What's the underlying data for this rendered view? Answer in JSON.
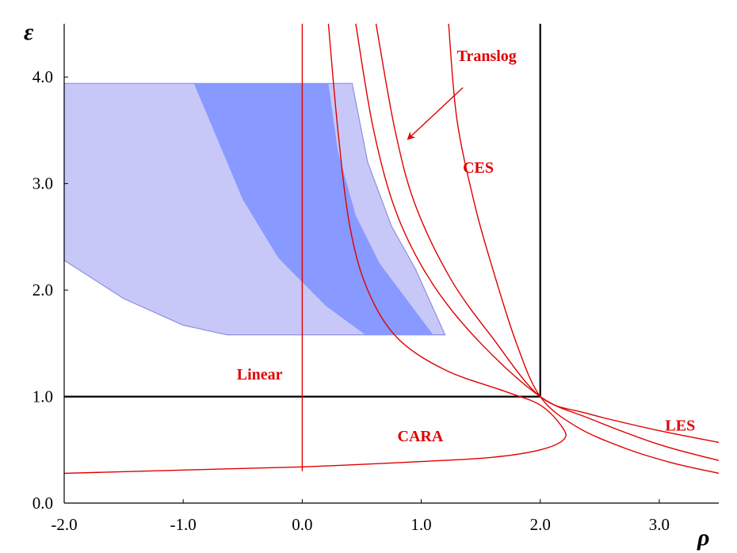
{
  "chart_data": {
    "type": "line",
    "x_symbol": "ρ",
    "y_symbol": "ε",
    "xlim": [
      -2.0,
      3.5
    ],
    "ylim": [
      0.0,
      4.5
    ],
    "x_ticks": [
      {
        "value": -2.0,
        "label": "-2.0"
      },
      {
        "value": -1.0,
        "label": "-1.0"
      },
      {
        "value": 0.0,
        "label": "0.0"
      },
      {
        "value": 1.0,
        "label": "1.0"
      },
      {
        "value": 2.0,
        "label": "2.0"
      },
      {
        "value": 3.0,
        "label": "3.0"
      }
    ],
    "y_ticks": [
      {
        "value": 0.0,
        "label": "0.0"
      },
      {
        "value": 1.0,
        "label": "1.0"
      },
      {
        "value": 2.0,
        "label": "2.0"
      },
      {
        "value": 3.0,
        "label": "3.0"
      },
      {
        "value": 4.0,
        "label": "4.0"
      }
    ],
    "colors": {
      "region_light": "#c8c8f8",
      "region_light_edge": "#8e8ee6",
      "region_dark": "#8899ff",
      "curves": "#e00000",
      "reference_lines": "#000000"
    },
    "regions": [
      {
        "name": "light",
        "points": [
          [
            -2.0,
            3.94
          ],
          [
            0.42,
            3.94
          ],
          [
            0.55,
            3.2
          ],
          [
            0.75,
            2.6
          ],
          [
            0.95,
            2.2
          ],
          [
            1.2,
            1.58
          ],
          [
            -0.63,
            1.58
          ],
          [
            -1.0,
            1.67
          ],
          [
            -1.5,
            1.92
          ],
          [
            -2.0,
            2.28
          ]
        ]
      },
      {
        "name": "dark",
        "points": [
          [
            -0.91,
            3.94
          ],
          [
            0.22,
            3.94
          ],
          [
            0.3,
            3.3
          ],
          [
            0.45,
            2.7
          ],
          [
            0.65,
            2.25
          ],
          [
            1.1,
            1.58
          ],
          [
            0.53,
            1.58
          ],
          [
            0.2,
            1.85
          ],
          [
            -0.2,
            2.3
          ],
          [
            -0.5,
            2.85
          ],
          [
            -0.91,
            3.94
          ]
        ]
      }
    ],
    "reference_lines": [
      {
        "points": [
          [
            -2.0,
            1.0
          ],
          [
            2.0,
            1.0
          ]
        ]
      },
      {
        "points": [
          [
            2.0,
            1.0
          ],
          [
            2.0,
            4.5
          ]
        ]
      }
    ],
    "series": [
      {
        "name": "Linear",
        "points": [
          [
            0.0,
            0.3
          ],
          [
            0.0,
            4.5
          ]
        ]
      },
      {
        "name": "CES",
        "points": [
          [
            1.23,
            4.5
          ],
          [
            1.3,
            3.6
          ],
          [
            1.45,
            2.8
          ],
          [
            1.6,
            2.2
          ],
          [
            1.8,
            1.5
          ],
          [
            2.0,
            1.0
          ],
          [
            2.3,
            0.72
          ],
          [
            2.7,
            0.52
          ],
          [
            3.1,
            0.38
          ],
          [
            3.5,
            0.28
          ]
        ]
      },
      {
        "name": "Translog",
        "points": [
          [
            0.62,
            4.5
          ],
          [
            0.78,
            3.5
          ],
          [
            0.95,
            2.8
          ],
          [
            1.25,
            2.1
          ],
          [
            1.6,
            1.55
          ],
          [
            2.0,
            1.0
          ],
          [
            2.4,
            0.84
          ],
          [
            3.0,
            0.68
          ],
          [
            3.5,
            0.57
          ]
        ]
      },
      {
        "name": "",
        "points": [
          [
            0.45,
            4.5
          ],
          [
            0.6,
            3.5
          ],
          [
            0.8,
            2.7
          ],
          [
            1.1,
            2.05
          ],
          [
            1.5,
            1.5
          ],
          [
            2.0,
            1.0
          ],
          [
            2.4,
            0.8
          ],
          [
            3.0,
            0.55
          ],
          [
            3.5,
            0.4
          ]
        ]
      },
      {
        "name": "CARA",
        "points": [
          [
            0.22,
            4.5
          ],
          [
            0.3,
            3.5
          ],
          [
            0.4,
            2.6
          ],
          [
            0.55,
            2.0
          ],
          [
            0.8,
            1.55
          ],
          [
            1.2,
            1.25
          ],
          [
            1.7,
            1.05
          ],
          [
            2.0,
            0.92
          ],
          [
            2.18,
            0.72
          ],
          [
            2.2,
            0.6
          ],
          [
            2.0,
            0.5
          ],
          [
            1.6,
            0.43
          ],
          [
            1.0,
            0.39
          ],
          [
            0.0,
            0.34
          ],
          [
            -1.0,
            0.31
          ],
          [
            -2.0,
            0.28
          ]
        ]
      }
    ],
    "annotations": [
      {
        "text": "Translog",
        "at": [
          1.3,
          4.15
        ]
      },
      {
        "text": "CES",
        "at": [
          1.35,
          3.1
        ]
      },
      {
        "text": "Linear",
        "at": [
          -0.55,
          1.16
        ]
      },
      {
        "text": "CARA",
        "at": [
          0.8,
          0.58
        ]
      },
      {
        "text": "LES",
        "at": [
          3.05,
          0.68
        ]
      }
    ],
    "arrow": {
      "from": [
        1.35,
        3.9
      ],
      "to": [
        0.89,
        3.42
      ]
    }
  }
}
